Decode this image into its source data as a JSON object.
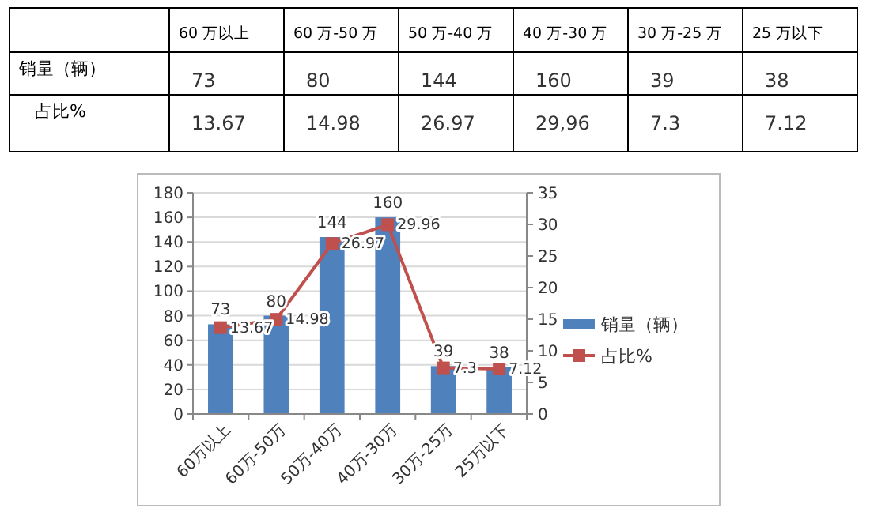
{
  "chart_data": [
    {
      "type": "other",
      "data_labels": true,
      "categories": [
        "60 万以上",
        "60 万-50 万",
        "50 万-40 万",
        "40 万-30 万",
        "30 万-25 万",
        "25 万以下"
      ],
      "series": [
        {
          "name": "销量（辆）",
          "values": [
            73,
            80,
            144,
            160,
            39,
            38
          ]
        },
        {
          "name": "占比%",
          "values": [
            13.67,
            14.98,
            26.97,
            29.96,
            7.3,
            7.12
          ],
          "value_labels": [
            "13.67",
            "14.98",
            "26.97",
            "29,96",
            "7.3",
            "7.12"
          ]
        }
      ]
    },
    {
      "type": "bar",
      "categories": [
        "60万以上",
        "60万-50万",
        "50万-40万",
        "40万-30万",
        "30万-25万",
        "25万以下"
      ],
      "series": [
        {
          "name": "销量（辆）",
          "type": "bar",
          "color": "#4f81bd",
          "values": [
            73,
            80,
            144,
            160,
            39,
            38
          ]
        },
        {
          "name": "占比%",
          "type": "line",
          "axis": "y2",
          "color": "#c0504d",
          "marker": "square",
          "values": [
            13.67,
            14.98,
            26.97,
            29.96,
            7.3,
            7.12
          ]
        }
      ],
      "ylim": [
        0,
        180
      ],
      "yticks": [
        0,
        20,
        40,
        60,
        80,
        100,
        120,
        140,
        160,
        180
      ],
      "y2lim": [
        0,
        35
      ],
      "y2ticks": [
        0,
        5,
        10,
        15,
        20,
        25,
        30,
        35
      ],
      "grid": "y",
      "legend": "right",
      "data_labels": true
    }
  ]
}
